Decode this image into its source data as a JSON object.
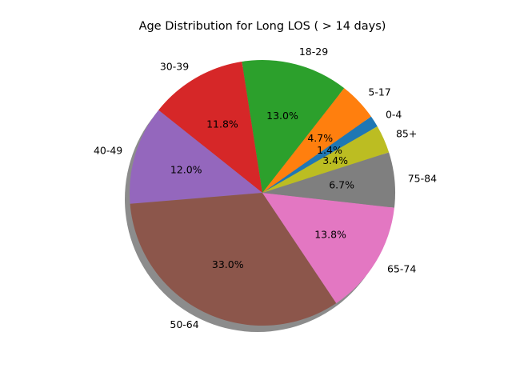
{
  "chart_data": {
    "type": "pie",
    "title": "Age Distribution for Long LOS ( > 14 days)",
    "slices": [
      {
        "label": "0-4",
        "value": 1.4,
        "pct_label": "1.4%",
        "color": "#1f77b4"
      },
      {
        "label": "5-17",
        "value": 4.7,
        "pct_label": "4.7%",
        "color": "#ff7f0e"
      },
      {
        "label": "18-29",
        "value": 13.0,
        "pct_label": "13.0%",
        "color": "#2ca02c"
      },
      {
        "label": "30-39",
        "value": 11.8,
        "pct_label": "11.8%",
        "color": "#d62728"
      },
      {
        "label": "40-49",
        "value": 12.0,
        "pct_label": "12.0%",
        "color": "#9467bd"
      },
      {
        "label": "50-64",
        "value": 33.0,
        "pct_label": "33.0%",
        "color": "#8c564b"
      },
      {
        "label": "65-74",
        "value": 13.8,
        "pct_label": "13.8%",
        "color": "#e377c2"
      },
      {
        "label": "75-84",
        "value": 6.7,
        "pct_label": "6.7%",
        "color": "#7f7f7f"
      },
      {
        "label": "85+",
        "value": 3.4,
        "pct_label": "3.4%",
        "color": "#bcbd22"
      }
    ],
    "start_angle": 30,
    "direction": "counterclockwise",
    "shadow": true
  }
}
